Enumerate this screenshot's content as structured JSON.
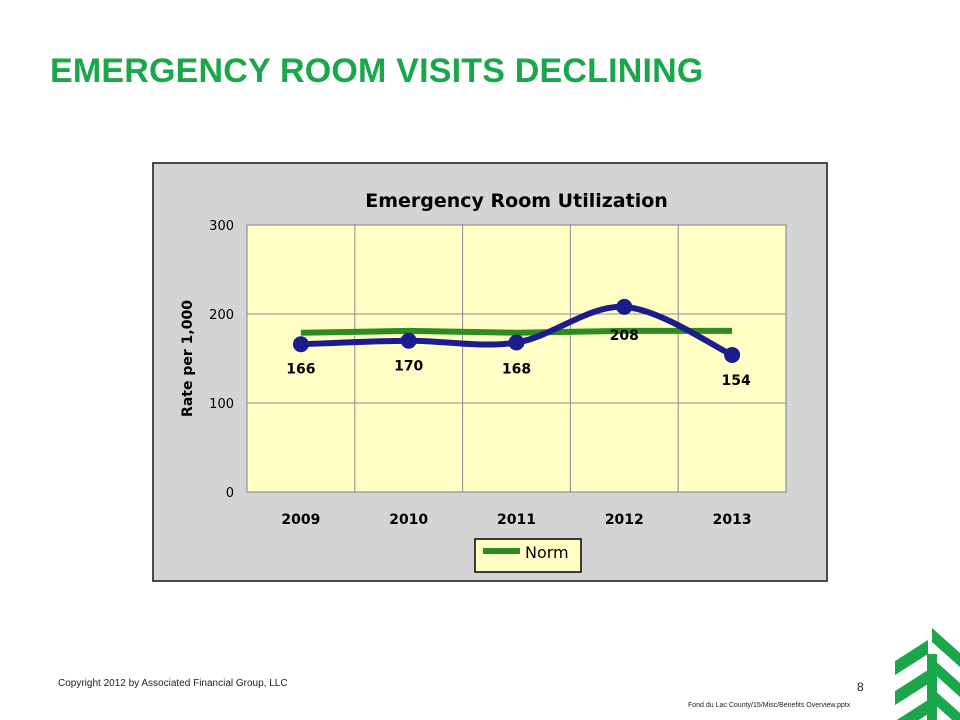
{
  "slide": {
    "title": "EMERGENCY ROOM VISITS DECLINING",
    "copyright": "Copyright 2012 by Associated Financial Group, LLC",
    "page_number": "8",
    "file_path": "Fond du Lac County/15/Misc/Benefits Overview.pptx"
  },
  "colors": {
    "title": "#1aa64a",
    "plot_background": "#ffffc6",
    "frame_background": "#d4d4d4",
    "actual_line": "#1c1c8e",
    "norm_line": "#2e8b1e",
    "logo": "#1aa64a"
  },
  "logo": {
    "icon": "green-tree-logo-icon"
  },
  "chart_data": {
    "type": "line",
    "title": "Emergency Room Utilization",
    "xlabel": "",
    "ylabel": "Rate per 1,000",
    "categories": [
      "2009",
      "2010",
      "2011",
      "2012",
      "2013"
    ],
    "ylim": [
      0,
      300
    ],
    "yticks": [
      "0",
      "100",
      "200",
      "300"
    ],
    "grid": true,
    "legend_position": "bottom-center",
    "series": [
      {
        "values": [
          166,
          170,
          168,
          208,
          154
        ],
        "data_labels": [
          "166",
          "170",
          "168",
          "208",
          "154"
        ]
      },
      {
        "name": "Norm",
        "values": [
          179,
          181,
          179,
          181,
          181
        ]
      }
    ]
  }
}
